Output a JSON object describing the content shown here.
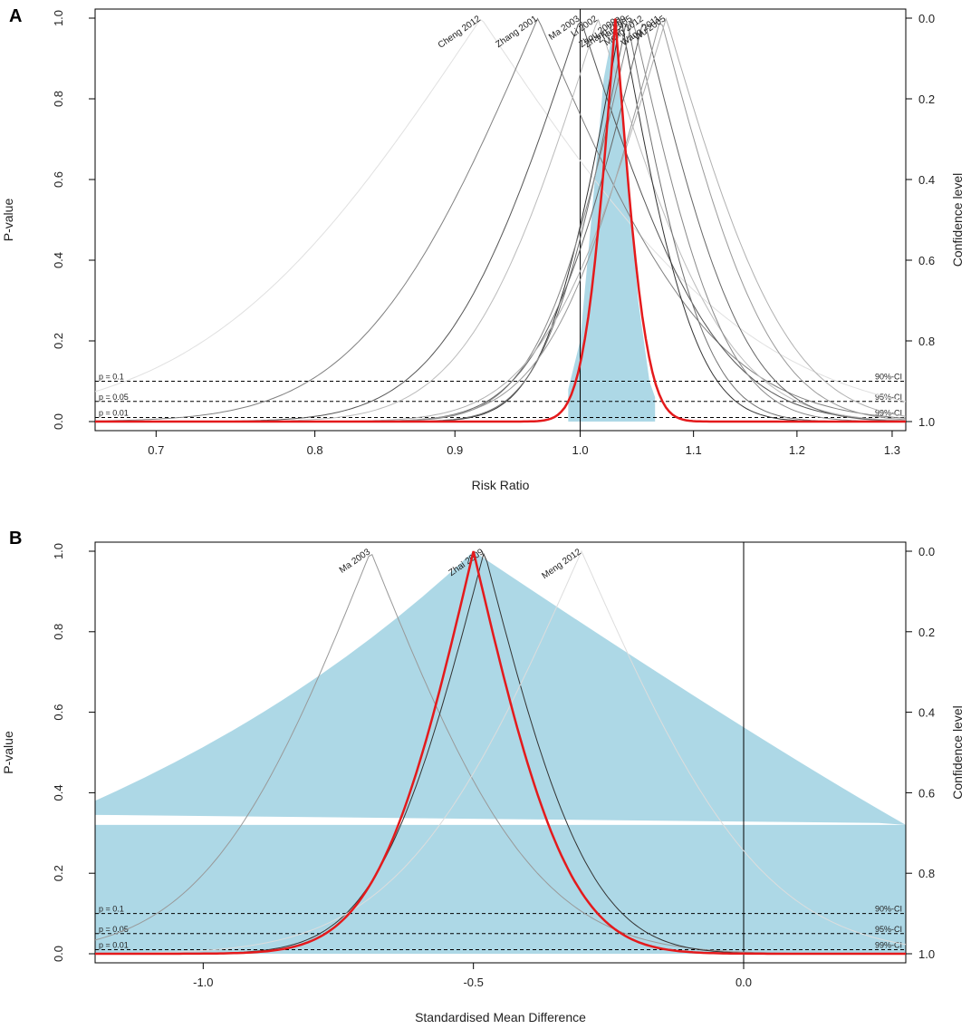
{
  "chart_data": [
    {
      "type": "line",
      "panel_label": "A",
      "title": "",
      "xlabel": "Risk Ratio",
      "ylabel": "P-value",
      "y2label": "Confidence level",
      "xlim": [
        0.665,
        1.315
      ],
      "ylim": [
        0,
        1
      ],
      "x_scale": "log",
      "xticks": [
        0.7,
        0.8,
        0.9,
        1.0,
        1.1,
        1.2,
        1.3
      ],
      "xtick_labels": [
        "0.7",
        "0.8",
        "0.9",
        "1.0",
        "1.1",
        "1.2",
        "1.3"
      ],
      "yticks": [
        0,
        0.2,
        0.4,
        0.6,
        0.8,
        1.0
      ],
      "ytick_labels": [
        "0.0",
        "0.2",
        "0.4",
        "0.6",
        "0.8",
        "1.0"
      ],
      "y2tick_labels": [
        "1.0",
        "0.8",
        "0.6",
        "0.4",
        "0.2",
        "0.0"
      ],
      "null_line": 1.0,
      "reference_lines": [
        {
          "p": 0.1,
          "left_label": "p = 0.1",
          "right_label": "90%-CI"
        },
        {
          "p": 0.05,
          "left_label": "p = 0.05",
          "right_label": "95%-CI"
        },
        {
          "p": 0.01,
          "left_label": "p = 0.01",
          "right_label": "99%-CI"
        }
      ],
      "shaded_region": {
        "color": "#add8e6",
        "lower": [
          [
            0.99,
            0.08
          ],
          [
            1.0,
            0.2
          ],
          [
            1.01,
            0.52
          ],
          [
            1.02,
            0.85
          ],
          [
            1.03,
            1.0
          ],
          [
            1.04,
            0.65
          ],
          [
            1.05,
            0.3
          ],
          [
            1.06,
            0.1
          ],
          [
            1.065,
            0.06
          ]
        ]
      },
      "pooled": {
        "name": "Pooled",
        "center": 1.03,
        "halfwidth99": 0.055,
        "color": "#e41a1c"
      },
      "series": [
        {
          "name": "Cheng 2012",
          "center": 0.92,
          "halfwidth99": 0.55,
          "color": "#e0e0e0"
        },
        {
          "name": "Zhang 2001",
          "center": 0.965,
          "halfwidth99": 0.34,
          "color": "#808080"
        },
        {
          "name": "Ma 2003",
          "center": 1.0,
          "halfwidth99": 0.26,
          "color": "#555555"
        },
        {
          "name": "Li 2002",
          "center": 1.015,
          "halfwidth99": 0.25,
          "color": "#bbbbbb"
        },
        {
          "name": "Zhou 2009a",
          "center": 1.035,
          "halfwidth99": 0.14,
          "color": "#333333"
        },
        {
          "name": "Zhang 2009",
          "center": 1.04,
          "halfwidth99": 0.15,
          "color": "#707070"
        },
        {
          "name": "Zhai 2005",
          "center": 1.045,
          "halfwidth99": 0.18,
          "color": "#888888"
        },
        {
          "name": "Meng 2012",
          "center": 1.055,
          "halfwidth99": 0.2,
          "color": "#666666"
        },
        {
          "name": "Wang 2011",
          "center": 1.07,
          "halfwidth99": 0.22,
          "color": "#999999"
        },
        {
          "name": "Wu 2005",
          "center": 1.075,
          "halfwidth99": 0.25,
          "color": "#b0b0b0"
        }
      ]
    },
    {
      "type": "line",
      "panel_label": "B",
      "title": "",
      "xlabel": "Standardised Mean Difference",
      "ylabel": "P-value",
      "y2label": "Confidence level",
      "xlim": [
        -1.2,
        0.3
      ],
      "ylim": [
        0,
        1
      ],
      "x_scale": "linear",
      "xticks": [
        -1.0,
        -0.5,
        0.0
      ],
      "xtick_labels": [
        "-1.0",
        "-0.5",
        "0.0"
      ],
      "yticks": [
        0,
        0.2,
        0.4,
        0.6,
        0.8,
        1.0
      ],
      "ytick_labels": [
        "0.0",
        "0.2",
        "0.4",
        "0.6",
        "0.8",
        "1.0"
      ],
      "y2tick_labels": [
        "1.0",
        "0.8",
        "0.6",
        "0.4",
        "0.2",
        "0.0"
      ],
      "null_line": 0.0,
      "reference_lines": [
        {
          "p": 0.1,
          "left_label": "p = 0.1",
          "right_label": "90%-CI"
        },
        {
          "p": 0.05,
          "left_label": "p = 0.05",
          "right_label": "95%-CI"
        },
        {
          "p": 0.01,
          "left_label": "p = 0.01",
          "right_label": "99%-CI"
        }
      ],
      "shaded_region": {
        "color": "#add8e6",
        "upper_peak": [
          -0.5,
          1.0
        ],
        "upper_left": [
          -1.2,
          0.38
        ],
        "upper_right": [
          0.3,
          0.32
        ],
        "gap_left": [
          -1.2,
          0.32
        ],
        "gap_right": [
          0.25,
          0.325
        ]
      },
      "pooled": {
        "name": "Pooled",
        "center": -0.5,
        "halfwidth99": 0.36,
        "color": "#e41a1c"
      },
      "series": [
        {
          "name": "Ma 2003",
          "center": -0.69,
          "halfwidth99": 0.62,
          "color": "#999999"
        },
        {
          "name": "Zhai 2009",
          "center": -0.48,
          "halfwidth99": 0.4,
          "color": "#333333"
        },
        {
          "name": "Meng 2012",
          "center": -0.3,
          "halfwidth99": 0.68,
          "color": "#dddddd"
        }
      ]
    }
  ]
}
